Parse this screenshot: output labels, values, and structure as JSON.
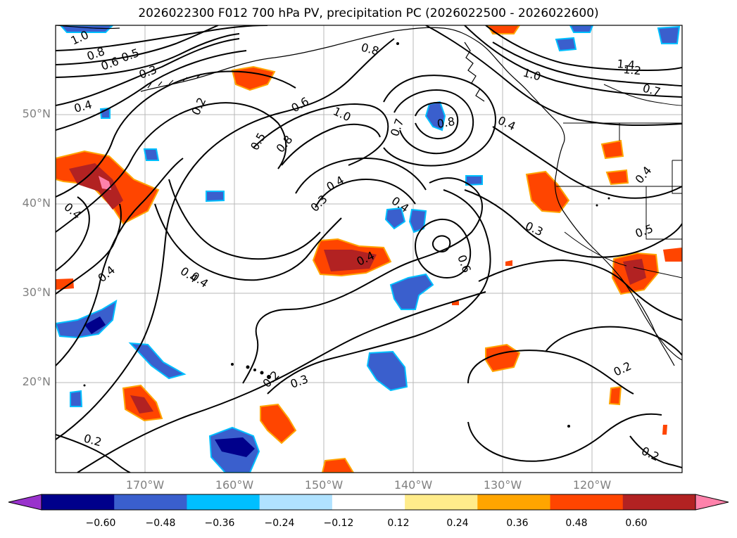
{
  "title": "2026022300 F012 700 hPa PV, precipitation PC (2026022500 - 2026022600)",
  "map": {
    "lon_range": [
      -180,
      -110
    ],
    "lat_range": [
      10,
      60
    ],
    "lat_ticks": [
      "50°N",
      "40°N",
      "30°N",
      "20°N"
    ],
    "lon_ticks": [
      "170°W",
      "160°W",
      "150°W",
      "140°W",
      "130°W",
      "120°W"
    ],
    "grid": true,
    "contour_labels": [
      "1.0",
      "0.8",
      "0.6",
      "0.5",
      "0.3",
      "0.2",
      "0.4",
      "0.5",
      "0.8",
      "0.6",
      "1.0",
      "0.4",
      "0.3",
      "0.4",
      "0.7",
      "0.8",
      "0.4",
      "0.8",
      "1.0",
      "1.4",
      "1.2",
      "0.7",
      "0.4",
      "0.3",
      "0.5",
      "0.6",
      "0.4",
      "0.4",
      "0.4",
      "0.2",
      "0.3",
      "0.2",
      "0.2",
      "0.2",
      "0.4",
      "0.4"
    ]
  },
  "colorbar": {
    "colors": [
      "#9932cc",
      "#00008b",
      "#3a5fcd",
      "#00bfff",
      "#b0e2ff",
      "#ffffff",
      "#ffec8b",
      "#ffa500",
      "#ff4500",
      "#b22222",
      "#ff82ab"
    ],
    "ticks": [
      "−0.60",
      "−0.48",
      "−0.36",
      "−0.24",
      "−0.12",
      "0.12",
      "0.24",
      "0.36",
      "0.48",
      "0.60"
    ],
    "extend": "both"
  }
}
